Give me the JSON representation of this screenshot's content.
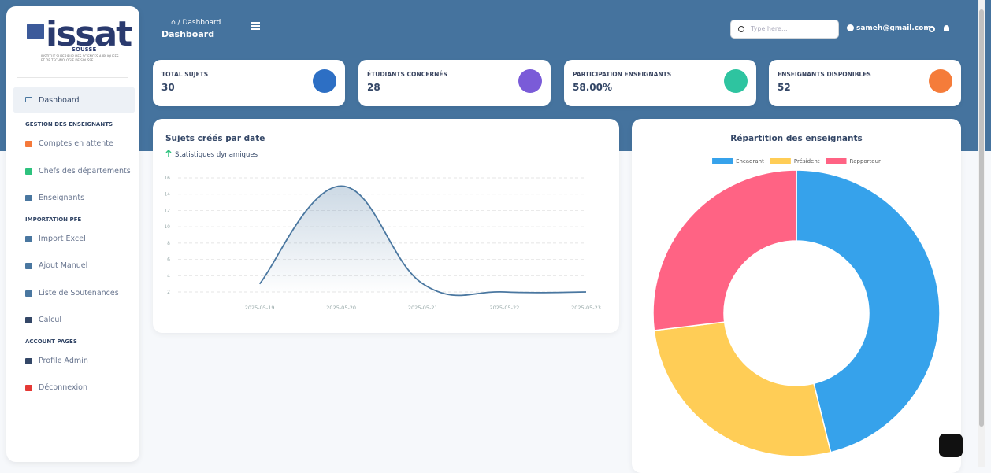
{
  "sidebar": {
    "logo": {
      "name": "issat",
      "city": "SOUSSE",
      "caption": "INSTITUT SUPERIEUR DES SCIENCES APPLIQUEES ET DE TECHNOLOGIE DE SOUSSE"
    },
    "dashboard": "Dashboard",
    "sections": [
      {
        "title": "GESTION DES ENSEIGNANTS",
        "items": [
          "Comptes en attente",
          "Chefs des départements",
          "Enseignants"
        ]
      },
      {
        "title": "IMPORTATION PFE",
        "items": [
          "Import Excel",
          "Ajout Manuel",
          "Liste de Soutenances",
          "Calcul"
        ]
      },
      {
        "title": "ACCOUNT PAGES",
        "items": [
          "Profile Admin",
          "Déconnexion"
        ]
      }
    ]
  },
  "header": {
    "breadcrumb": "Dashboard",
    "title": "Dashboard",
    "search_placeholder": "Type here...",
    "user": "sameh@gmail.com"
  },
  "cards": [
    {
      "label": "TOTAL SUJETS",
      "value": "30"
    },
    {
      "label": "ÉTUDIANTS CONCERNÉS",
      "value": "28"
    },
    {
      "label": "PARTICIPATION ENSEIGNANTS",
      "value": "58.00%"
    },
    {
      "label": "ENSEIGNANTS DISPONIBLES",
      "value": "52"
    }
  ],
  "chart_data": [
    {
      "type": "line",
      "title": "Sujets créés par date",
      "subtitle": "Statistiques dynamiques",
      "categories": [
        "2025-05-19",
        "2025-05-20",
        "2025-05-21",
        "2025-05-22",
        "2025-05-23"
      ],
      "values": [
        3,
        15,
        3,
        2,
        2
      ],
      "color": "#4a77a0",
      "ylim": [
        2,
        16
      ],
      "yticks": [
        2,
        4,
        6,
        8,
        10,
        12,
        14,
        16
      ],
      "grid": true
    },
    {
      "type": "pie",
      "title": "Répartition des enseignants",
      "categories": [
        "Encadrant",
        "Président",
        "Rapporteur"
      ],
      "values": [
        24,
        14,
        14
      ],
      "colors": [
        "#36a2eb",
        "#ffcd56",
        "#ff6384"
      ]
    }
  ]
}
